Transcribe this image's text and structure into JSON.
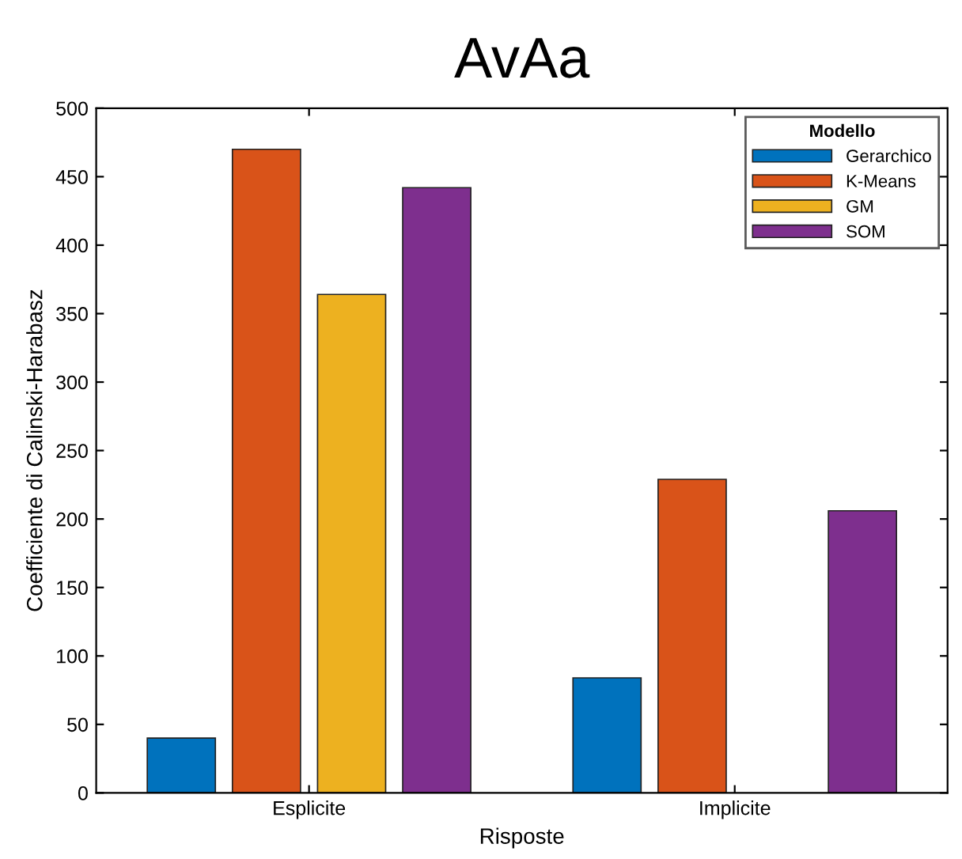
{
  "chart_data": {
    "type": "bar",
    "title": "AvAa",
    "xlabel": "Risposte",
    "ylabel": "Coefficiente di Calinski-Harabasz",
    "legend_title": "Modello",
    "categories": [
      "Esplicite",
      "Implicite"
    ],
    "series": [
      {
        "name": "Gerarchico",
        "color": "#0072bd",
        "values": [
          40,
          84
        ]
      },
      {
        "name": "K-Means",
        "color": "#d95319",
        "values": [
          470,
          229
        ]
      },
      {
        "name": "GM",
        "color": "#edb120",
        "values": [
          364,
          null
        ]
      },
      {
        "name": "SOM",
        "color": "#7e2f8e",
        "values": [
          442,
          206
        ]
      }
    ],
    "ylim": [
      0,
      500
    ],
    "yticks": [
      0,
      50,
      100,
      150,
      200,
      250,
      300,
      350,
      400,
      450,
      500
    ],
    "grid": false,
    "legend": "top right"
  }
}
